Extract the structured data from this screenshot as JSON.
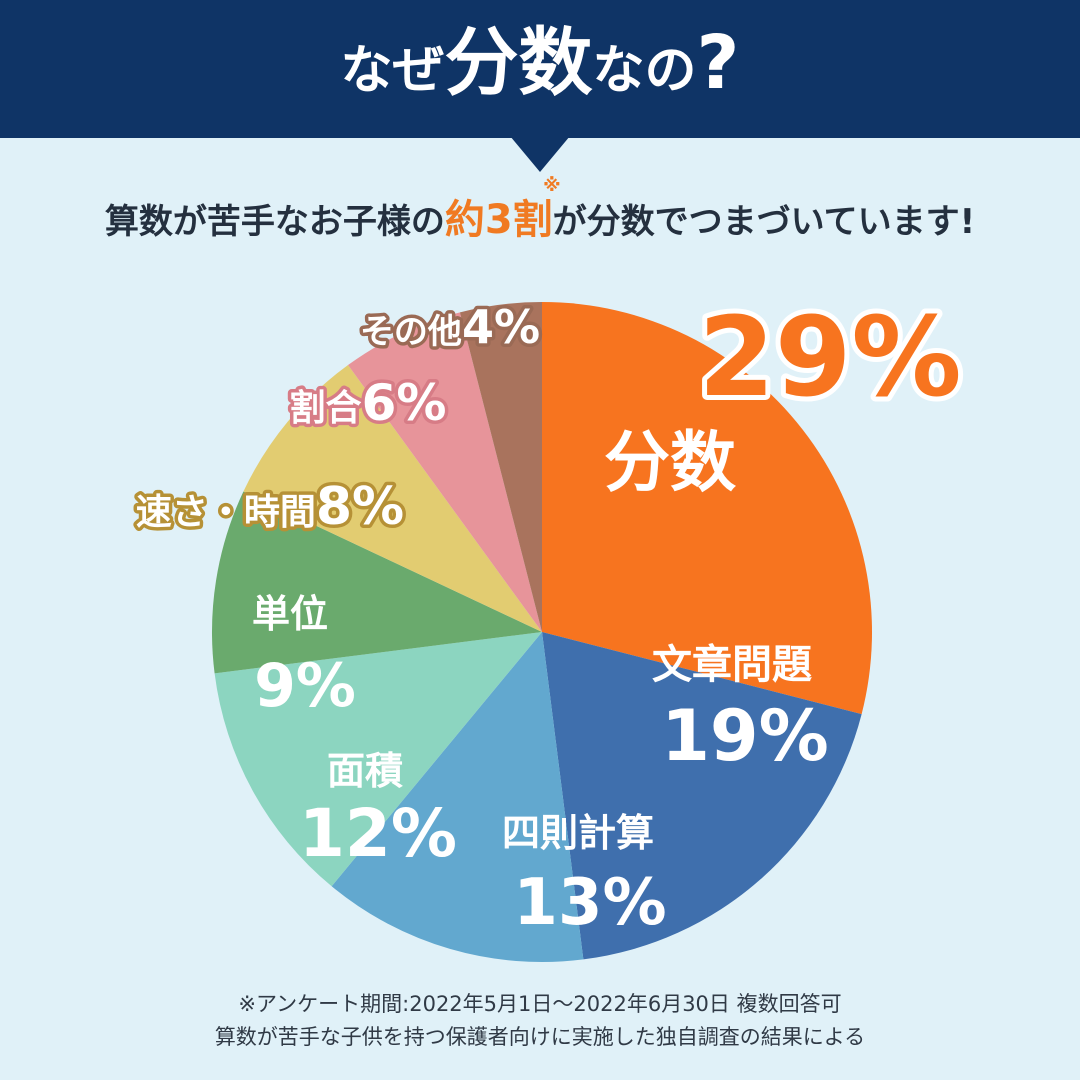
{
  "header": {
    "title_part1": "なぜ",
    "title_part2": "分数",
    "title_part3": "なの",
    "title_part4": "?"
  },
  "subtitle": {
    "prefix": "算数が苦手なお子様の",
    "highlight": "約3割",
    "mark": "※",
    "suffix": "が分数でつまづいています!"
  },
  "colors": {
    "banner": "#0f3466",
    "accent": "#f07a22",
    "background": "#e0f1f8"
  },
  "chart_data": {
    "type": "pie",
    "title": "",
    "slices": [
      {
        "name": "分数",
        "value": 29,
        "label": "29%",
        "color": "#f7741f"
      },
      {
        "name": "文章問題",
        "value": 19,
        "label": "19%",
        "color": "#3f6fad"
      },
      {
        "name": "四則計算",
        "value": 13,
        "label": "13%",
        "color": "#62a8cf"
      },
      {
        "name": "面積",
        "value": 12,
        "label": "12%",
        "color": "#8cd5c0"
      },
      {
        "name": "単位",
        "value": 9,
        "label": "9%",
        "color": "#6aaa6d"
      },
      {
        "name": "速さ・時間",
        "value": 8,
        "label": "8%",
        "color": "#e2cc71"
      },
      {
        "name": "割合",
        "value": 6,
        "label": "6%",
        "color": "#e7949a"
      },
      {
        "name": "その他",
        "value": 4,
        "label": "4%",
        "color": "#a9735d"
      }
    ]
  },
  "footnote": {
    "line1": "※アンケート期間:2022年5月1日〜2022年6月30日 複数回答可",
    "line2": "算数が苦手な子供を持つ保護者向けに実施した独自調査の結果による"
  }
}
